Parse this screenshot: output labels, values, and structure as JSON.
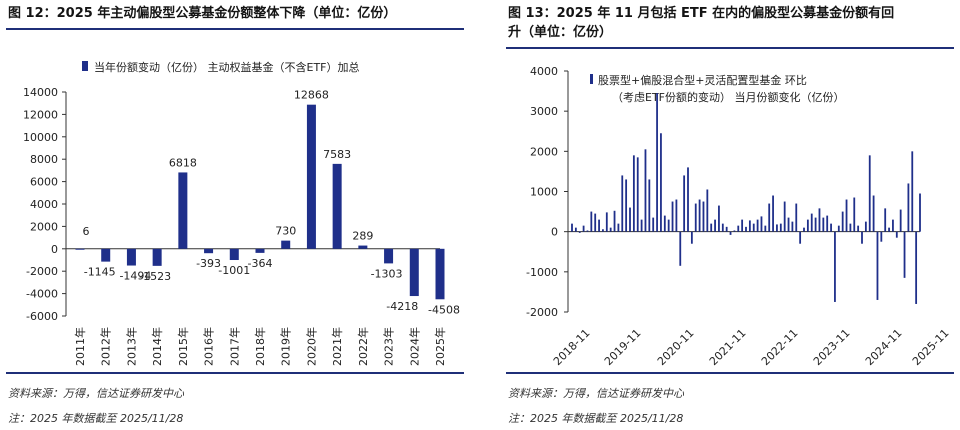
{
  "colors": {
    "bar": "#1f2f8a",
    "rule": "#1f2f78",
    "axis": "#333333"
  },
  "left": {
    "title": "图 12：2025 年主动偏股型公募基金份额整体下降（单位：亿份）",
    "source": "资料来源：万得，信达证券研发中心",
    "note": "注：2025 年数据截至 2025/11/28"
  },
  "right": {
    "title_line1": "图 13：2025 年 11 月包括 ETF 在内的偏股型公募基金份额有回",
    "title_line2": "升（单位：亿份）",
    "source": "资料来源：万得，信达证券研发中心",
    "note": "注：2025 年数据截至 2025/11/28"
  },
  "chart_data": [
    {
      "type": "bar",
      "legend": "当年份额变动（亿份） 主动权益基金（不含ETF）加总",
      "categories": [
        "2011年",
        "2012年",
        "2013年",
        "2014年",
        "2015年",
        "2016年",
        "2017年",
        "2018年",
        "2019年",
        "2020年",
        "2021年",
        "2022年",
        "2023年",
        "2024年",
        "2025年"
      ],
      "values": [
        6,
        -1145,
        -1494,
        -1523,
        6818,
        -393,
        -1001,
        -364,
        730,
        12868,
        7583,
        289,
        -1303,
        -4218,
        -4508
      ],
      "labels": [
        "6",
        "-1145",
        "-1494",
        "-1523",
        "6818",
        "-393",
        "-1001",
        "-364",
        "730",
        "12868",
        "7583",
        "289",
        "-1303",
        "-4218",
        "-4508"
      ],
      "ylim": [
        -6000,
        14000
      ],
      "yticks": [
        "14000",
        "12000",
        "10000",
        "8000",
        "6000",
        "4000",
        "2000",
        "0",
        "-2000",
        "-4000",
        "-6000"
      ]
    },
    {
      "type": "bar",
      "legend_line1": "股票型+偏股混合型+灵活配置型基金 环比",
      "legend_line2": "（考虑ETF份额的变动） 当月份额变化（亿份）",
      "ylim": [
        -2000,
        4000
      ],
      "yticks": [
        "4000",
        "3000",
        "2000",
        "1000",
        "0",
        "-1000",
        "-2000"
      ],
      "xticks": [
        "2018-11",
        "2019-11",
        "2020-11",
        "2021-11",
        "2022-11",
        "2023-11",
        "2024-11",
        "2025-11"
      ],
      "values": [
        200,
        100,
        -30,
        150,
        30,
        500,
        450,
        300,
        60,
        480,
        100,
        520,
        200,
        1400,
        1300,
        600,
        1900,
        1850,
        300,
        2050,
        1300,
        350,
        3450,
        2450,
        400,
        300,
        750,
        800,
        -850,
        1400,
        1600,
        -300,
        700,
        800,
        750,
        1050,
        200,
        300,
        650,
        200,
        120,
        -80,
        30,
        150,
        300,
        120,
        280,
        200,
        300,
        380,
        150,
        700,
        900,
        180,
        200,
        750,
        350,
        250,
        700,
        -300,
        100,
        300,
        450,
        350,
        580,
        350,
        400,
        200,
        -1750,
        150,
        500,
        800,
        200,
        850,
        150,
        -300,
        250,
        1900,
        900,
        -1700,
        -250,
        580,
        100,
        300,
        -150,
        550,
        -1150,
        1200,
        2000,
        -1800,
        950
      ]
    }
  ]
}
